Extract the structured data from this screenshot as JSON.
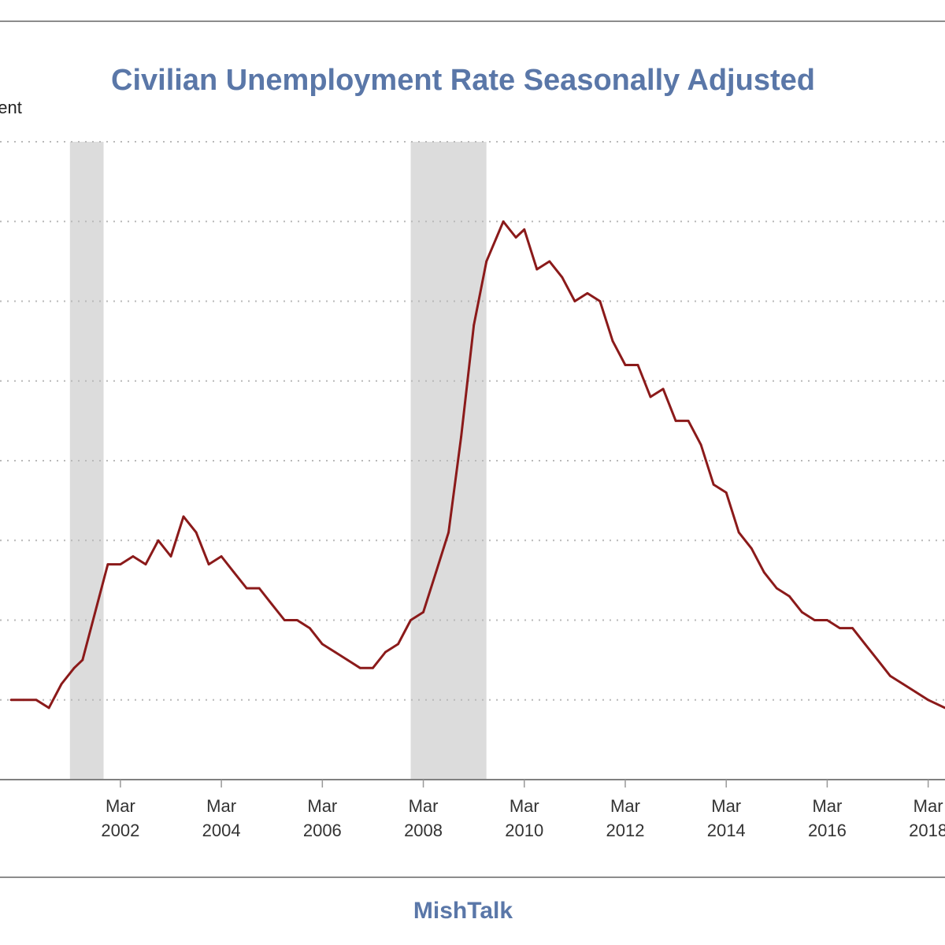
{
  "chart_data": {
    "type": "line",
    "title": "Civilian Unemployment Rate Seasonally Adjusted",
    "ylabel": "Percent",
    "xlabel": "",
    "footer": "MishTalk",
    "ylim": [
      3.0,
      11.0
    ],
    "xlim": [
      "2000-01",
      "2018-07"
    ],
    "grid": true,
    "legend": "none",
    "line_color": "#8b1a1a",
    "recession_color": "#dcdcdc",
    "recessions": [
      {
        "start": "2001-03",
        "end": "2001-11"
      },
      {
        "start": "2007-12",
        "end": "2009-06"
      }
    ],
    "x_ticks": [
      {
        "date": "2002-03",
        "month": "Mar",
        "year": "2002"
      },
      {
        "date": "2004-03",
        "month": "Mar",
        "year": "2004"
      },
      {
        "date": "2006-03",
        "month": "Mar",
        "year": "2006"
      },
      {
        "date": "2008-03",
        "month": "Mar",
        "year": "2008"
      },
      {
        "date": "2010-03",
        "month": "Mar",
        "year": "2010"
      },
      {
        "date": "2012-03",
        "month": "Mar",
        "year": "2012"
      },
      {
        "date": "2014-03",
        "month": "Mar",
        "year": "2014"
      },
      {
        "date": "2016-03",
        "month": "Mar",
        "year": "2016"
      },
      {
        "date": "2018-03",
        "month": "Mar",
        "year": "2018"
      }
    ],
    "series": [
      {
        "x": [
          "2000-01",
          "2000-04",
          "2000-07",
          "2000-10",
          "2001-01",
          "2001-04",
          "2001-06",
          "2001-08",
          "2001-10",
          "2001-12",
          "2002-03",
          "2002-06",
          "2002-09",
          "2002-12",
          "2003-03",
          "2003-06",
          "2003-09",
          "2003-12",
          "2004-03",
          "2004-06",
          "2004-09",
          "2004-12",
          "2005-03",
          "2005-06",
          "2005-09",
          "2005-12",
          "2006-03",
          "2006-06",
          "2006-09",
          "2006-12",
          "2007-03",
          "2007-06",
          "2007-09",
          "2007-12",
          "2008-03",
          "2008-06",
          "2008-09",
          "2008-12",
          "2009-03",
          "2009-06",
          "2009-10",
          "2010-01",
          "2010-03",
          "2010-06",
          "2010-09",
          "2010-12",
          "2011-03",
          "2011-06",
          "2011-09",
          "2011-12",
          "2012-03",
          "2012-06",
          "2012-09",
          "2012-12",
          "2013-03",
          "2013-06",
          "2013-09",
          "2013-12",
          "2014-03",
          "2014-06",
          "2014-09",
          "2014-12",
          "2015-03",
          "2015-06",
          "2015-09",
          "2015-12",
          "2016-03",
          "2016-06",
          "2016-09",
          "2016-12",
          "2017-03",
          "2017-06",
          "2017-09",
          "2017-12",
          "2018-03",
          "2018-07"
        ],
        "values": [
          4.0,
          4.0,
          4.0,
          3.9,
          4.2,
          4.4,
          4.5,
          4.9,
          5.3,
          5.7,
          5.7,
          5.8,
          5.7,
          6.0,
          5.8,
          6.3,
          6.1,
          5.7,
          5.8,
          5.6,
          5.4,
          5.4,
          5.2,
          5.0,
          5.0,
          4.9,
          4.7,
          4.6,
          4.5,
          4.4,
          4.4,
          4.6,
          4.7,
          5.0,
          5.1,
          5.6,
          6.1,
          7.3,
          8.7,
          9.5,
          10.0,
          9.8,
          9.9,
          9.4,
          9.5,
          9.3,
          9.0,
          9.1,
          9.0,
          8.5,
          8.2,
          8.2,
          7.8,
          7.9,
          7.5,
          7.5,
          7.2,
          6.7,
          6.6,
          6.1,
          5.9,
          5.6,
          5.4,
          5.3,
          5.1,
          5.0,
          5.0,
          4.9,
          4.9,
          4.7,
          4.5,
          4.3,
          4.2,
          4.1,
          4.0,
          3.9
        ]
      }
    ]
  }
}
